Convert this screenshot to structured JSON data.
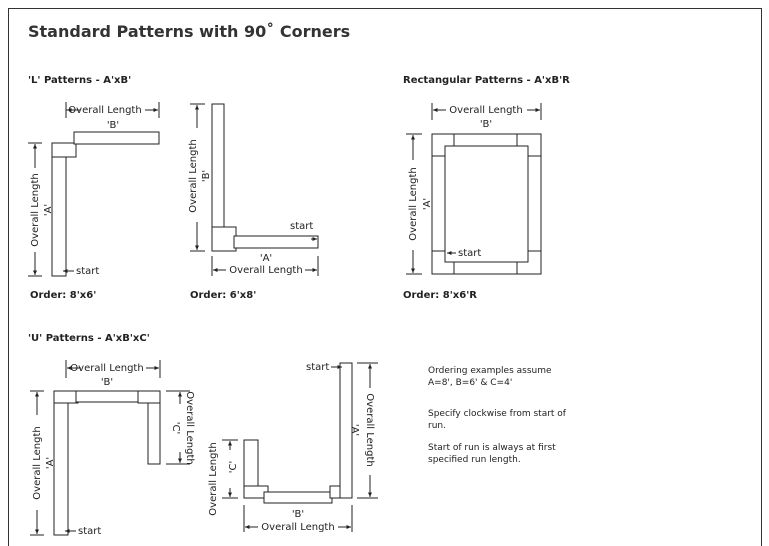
{
  "title": "Standard Patterns with 90˚ Corners",
  "sections": {
    "l": {
      "heading": "'L' Patterns -  A'xB'"
    },
    "rect": {
      "heading": "Rectangular Patterns -  A'xB'R"
    },
    "u": {
      "heading": "'U' Patterns -  A'xB'xC'"
    }
  },
  "orders": {
    "l1": "Order: 8'x6'",
    "l2": "Order: 6'x8'",
    "rect": "Order: 8'x6'R"
  },
  "labels": {
    "overall_length": "Overall Length",
    "a": "'A'",
    "b": "'B'",
    "c": "'C'",
    "start": "start"
  },
  "notes": [
    "Ordering examples assume A=8', B=6' & C=4'",
    "Specify clockwise from start of run.",
    "Start of run is always at first specified run length."
  ]
}
